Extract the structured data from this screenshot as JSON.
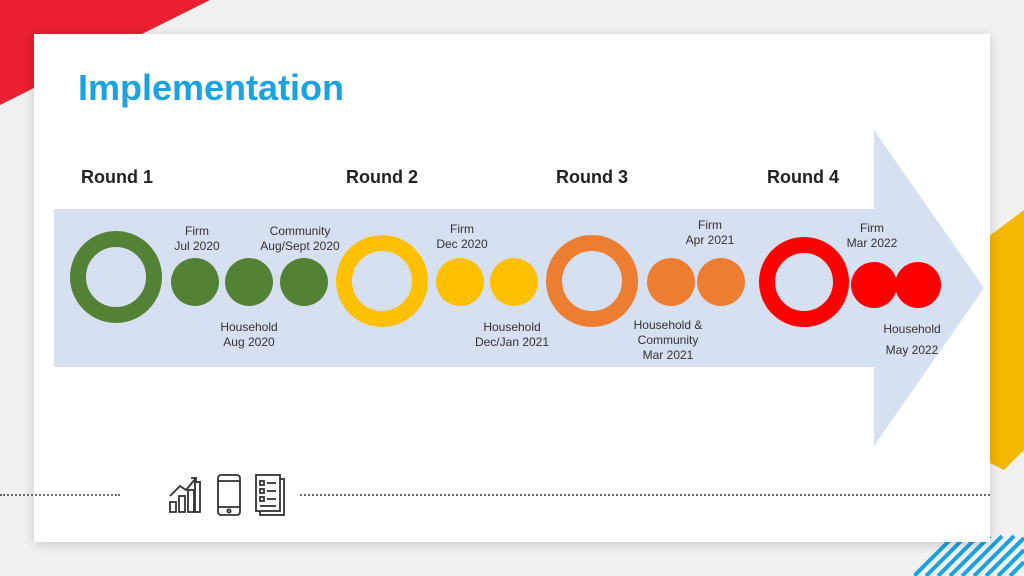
{
  "colors": {
    "title": "#1aa3e0",
    "band": "#d6e0f0",
    "round1": "#538135",
    "round2": "#ffc000",
    "round3": "#ed7d31",
    "round4": "#ff0000"
  },
  "slide": {
    "title": "Implementation"
  },
  "rounds": [
    "Round 1",
    "Round 2",
    "Round 3",
    "Round 4"
  ],
  "labels": {
    "r1_firm": "Firm\nJul 2020",
    "r1_community": "Community\nAug/Sept 2020",
    "r1_household": "Household\nAug 2020",
    "r2_firm": "Firm\nDec 2020",
    "r2_household": "Household\nDec/Jan 2021",
    "r3_firm": "Firm\nApr 2021",
    "r3_household": "Household &\nCommunity\nMar 2021",
    "r4_firm": "Firm\nMar 2022",
    "r4_household": "Household",
    "r4_household_date": "May 2022"
  },
  "icons": [
    "growth-chart-icon",
    "smartphone-icon",
    "survey-document-icon"
  ]
}
